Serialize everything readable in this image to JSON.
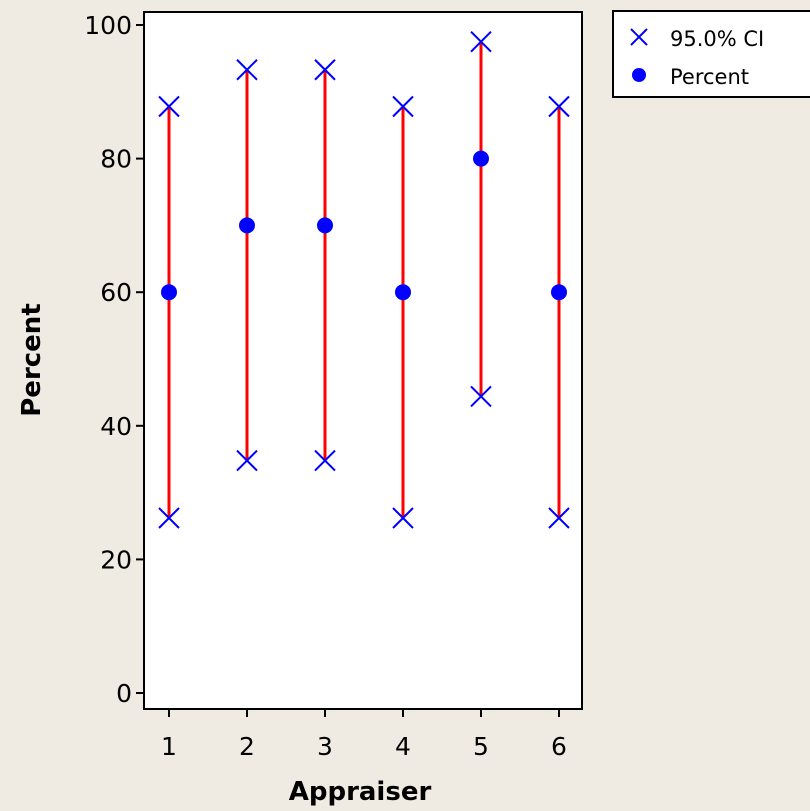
{
  "chart_data": {
    "type": "scatter",
    "title": "",
    "xlabel": "Appraiser",
    "ylabel": "Percent",
    "categories": [
      "1",
      "2",
      "3",
      "4",
      "5",
      "6"
    ],
    "x": [
      1,
      2,
      3,
      4,
      5,
      6
    ],
    "ylim": [
      0,
      100
    ],
    "yticks": [
      0,
      20,
      40,
      60,
      80,
      100
    ],
    "grid": false,
    "legend_position": "top-right",
    "series": [
      {
        "name": "Percent",
        "marker": "circle",
        "values": [
          60,
          70,
          70,
          60,
          80,
          60
        ]
      },
      {
        "name": "95.0% CI",
        "marker": "x",
        "lower": [
          26.2,
          34.8,
          34.8,
          26.2,
          44.4,
          26.2
        ],
        "upper": [
          87.8,
          93.3,
          93.3,
          87.8,
          97.5,
          87.8
        ]
      }
    ],
    "legend": [
      "95.0% CI",
      "Percent"
    ]
  },
  "colors": {
    "background": "#efebe2",
    "plot_background": "#ffffff",
    "ci_line": "#ff0000",
    "marker": "#0000ff",
    "axis": "#000000"
  }
}
